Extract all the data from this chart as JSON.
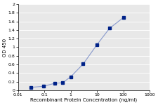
{
  "x": [
    0.031,
    0.094,
    0.25,
    0.5,
    1.0,
    3.0,
    10.0,
    30.0,
    100.0
  ],
  "y": [
    0.065,
    0.09,
    0.16,
    0.175,
    0.31,
    0.61,
    1.06,
    1.44,
    1.69
  ],
  "line_color": "#8899CC",
  "marker_color": "#002288",
  "marker_size": 2.5,
  "xlabel": "Recombinant Protein Concentration (ng/ml)",
  "ylabel": "OD 450",
  "xlim": [
    0.01,
    1000
  ],
  "ylim": [
    0,
    2
  ],
  "yticks": [
    0,
    0.2,
    0.4,
    0.6,
    0.8,
    1.0,
    1.2,
    1.4,
    1.6,
    1.8,
    2.0
  ],
  "ytick_labels": [
    "0",
    "0.2",
    "0.4",
    "0.6",
    "0.8",
    "1",
    "1.2",
    "1.4",
    "1.6",
    "1.8",
    "2"
  ],
  "xtick_positions": [
    0.01,
    0.1,
    1,
    10,
    100,
    1000
  ],
  "xtick_labels": [
    "0.01",
    "0.1",
    "1",
    "10",
    "100",
    "1000"
  ],
  "bg_color": "#e8e8e8",
  "grid_color": "#ffffff",
  "axis_fontsize": 5,
  "tick_fontsize": 4.5,
  "line_width": 0.8
}
